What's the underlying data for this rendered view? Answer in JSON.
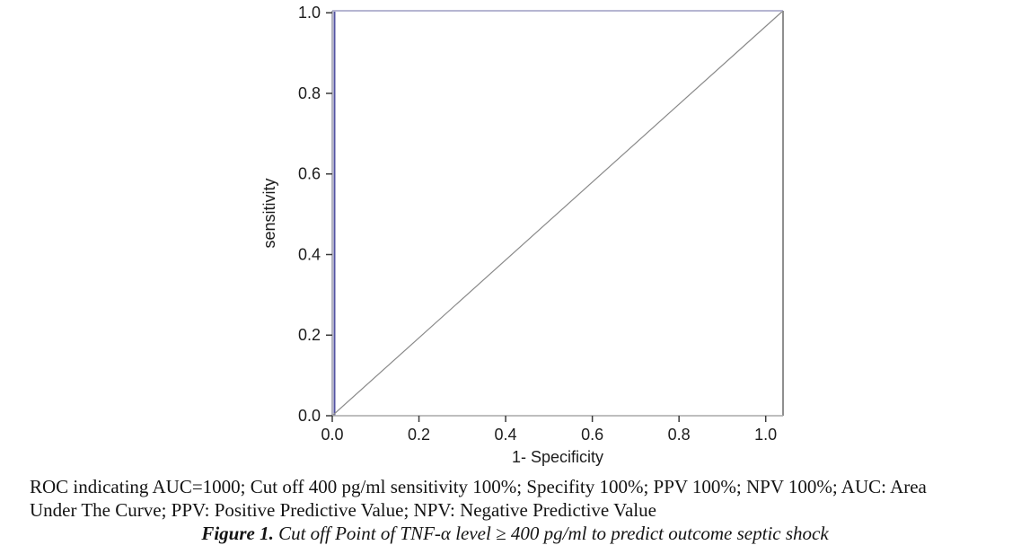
{
  "chart_data": {
    "type": "line",
    "title": "",
    "xlabel": "1- Specificity",
    "ylabel": "sensitivity",
    "xlim": [
      0,
      1.04
    ],
    "ylim": [
      0,
      1.005
    ],
    "xticks": [
      "0.0",
      "0.2",
      "0.4",
      "0.6",
      "0.8",
      "1.0"
    ],
    "yticks": [
      "0.0",
      "0.2",
      "0.4",
      "0.6",
      "0.8",
      "1.0"
    ],
    "grid": false,
    "legend": "none",
    "series": [
      {
        "name": "ROC curve",
        "color": "#5353a2",
        "points": [
          [
            0,
            0
          ],
          [
            0,
            1.005
          ],
          [
            1.04,
            1.005
          ]
        ]
      },
      {
        "name": "reference-diagonal",
        "color": "#8a8a8a",
        "points": [
          [
            0,
            0
          ],
          [
            1.04,
            1.005
          ]
        ]
      }
    ],
    "frame_colors": {
      "top": "#b6b6d2",
      "left": "#9a9aaa",
      "right": "#8f8f8f",
      "bottom": "#a8a8a8"
    },
    "tick_color": "#3a3a3a",
    "label_color": "#1c1c1c"
  },
  "caption": {
    "lines": [
      "ROC indicating AUC=1000; Cut off 400 pg/ml sensitivity 100%; Specifity 100%; PPV 100%; NPV 100%; AUC: Area",
      "Under The Curve; PPV: Positive Predictive Value; NPV: Negative Predictive Value"
    ],
    "figure_label": "Figure 1.",
    "figure_text": " Cut off Point of TNF-α level ≥ 400 pg/ml to predict outcome septic shock"
  }
}
